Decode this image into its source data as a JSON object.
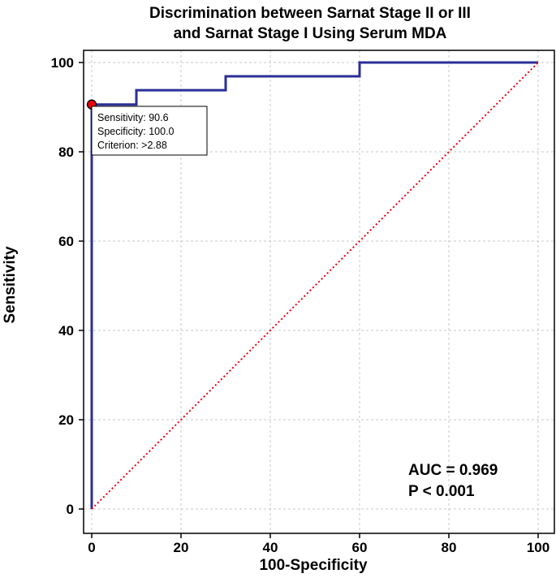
{
  "chart_data": {
    "type": "line",
    "title": [
      "Discrimination between Sarnat Stage II or III",
      "and Sarnat Stage I Using Serum MDA"
    ],
    "xlabel": "100-Specificity",
    "ylabel": "Sensitivity",
    "xlim": [
      0,
      100
    ],
    "ylim": [
      0,
      100
    ],
    "xticks": [
      0,
      20,
      40,
      60,
      80,
      100
    ],
    "yticks": [
      0,
      20,
      40,
      60,
      80,
      100
    ],
    "grid": true,
    "colors": {
      "roc": "#2b2f97",
      "reference": "#e8000b",
      "marker": "#e8000b"
    },
    "series": [
      {
        "role": "roc",
        "x": [
          0,
          0,
          10,
          10,
          30,
          30,
          60,
          60,
          100
        ],
        "y": [
          0,
          90.6,
          90.6,
          93.8,
          93.8,
          96.9,
          96.9,
          100,
          100
        ]
      },
      {
        "role": "reference",
        "x": [
          0,
          100
        ],
        "y": [
          0,
          100
        ]
      }
    ],
    "optimal_point": {
      "x": 0,
      "y": 90.6
    },
    "tooltip": {
      "lines": [
        "Sensitivity: 90.6",
        "Specificity: 100.0",
        "Criterion: >2.88"
      ]
    },
    "annotations": [
      "AUC = 0.969",
      "P < 0.001"
    ]
  }
}
